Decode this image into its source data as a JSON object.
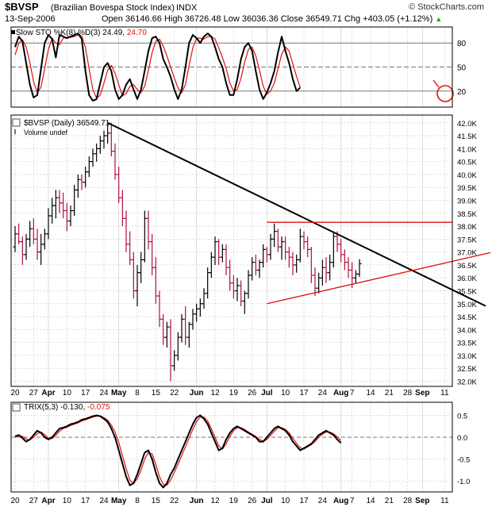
{
  "header": {
    "symbol": "$BVSP",
    "name": "(Brazilian Bovespa Stock Index)",
    "exchange": "INDX",
    "date": "13-Sep-2006",
    "open_label": "Open",
    "open": "36146.66",
    "high_label": "High",
    "high": "36726.48",
    "low_label": "Low",
    "low": "36036.36",
    "close_label": "Close",
    "close": "36549.71",
    "chg_label": "Chg",
    "chg": "+403.05 (+1.12%)",
    "brand": "© StockCharts.com"
  },
  "colors": {
    "price_up": "#000000",
    "price_down": "#b0103a",
    "signal": "#e01010",
    "trend": "#000000",
    "channel": "#e01010",
    "grid": "#c8c8c8",
    "axis": "#000000"
  },
  "chart_data": [
    {
      "type": "line",
      "panel": "stochastic",
      "legend_line": "Slow STO %K(8) %D(3)",
      "k_value": "24.49",
      "d_value": "24.70",
      "ylim": [
        0,
        100
      ],
      "yticks": [
        "80",
        "50",
        "20"
      ],
      "series": [
        {
          "name": "%K",
          "values": [
            75,
            88,
            82,
            55,
            28,
            12,
            15,
            48,
            80,
            90,
            85,
            62,
            90,
            88,
            86,
            88,
            90,
            92,
            85,
            45,
            15,
            8,
            10,
            30,
            50,
            55,
            45,
            22,
            10,
            15,
            28,
            35,
            22,
            10,
            22,
            45,
            70,
            86,
            88,
            80,
            60,
            50,
            38,
            22,
            10,
            22,
            50,
            80,
            90,
            86,
            80,
            88,
            92,
            88,
            75,
            60,
            50,
            30,
            15,
            15,
            35,
            60,
            75,
            80,
            70,
            45,
            22,
            10,
            18,
            30,
            45,
            68,
            88,
            70,
            55,
            35,
            20,
            24.49
          ]
        },
        {
          "name": "%D",
          "values": [
            65,
            80,
            84,
            75,
            55,
            32,
            18,
            25,
            48,
            72,
            86,
            80,
            78,
            86,
            87,
            87,
            88,
            90,
            89,
            74,
            48,
            22,
            11,
            15,
            30,
            46,
            52,
            42,
            28,
            14,
            17,
            26,
            28,
            22,
            18,
            26,
            46,
            68,
            82,
            85,
            76,
            64,
            50,
            36,
            24,
            18,
            28,
            52,
            74,
            86,
            86,
            85,
            88,
            88,
            85,
            74,
            62,
            48,
            30,
            20,
            22,
            36,
            56,
            72,
            75,
            64,
            46,
            26,
            16,
            20,
            30,
            48,
            66,
            75,
            70,
            54,
            38,
            24.7
          ]
        }
      ]
    },
    {
      "type": "bar",
      "subtype": "ohlc",
      "panel": "price",
      "legend_line": "$BVSP (Daily)",
      "last_value": "36549.71",
      "volume_label": "Volume undef",
      "ylim": [
        31800,
        42300
      ],
      "yticks": [
        "42.0K",
        "41.5K",
        "41.0K",
        "40.5K",
        "40.0K",
        "39.5K",
        "39.0K",
        "38.5K",
        "38.0K",
        "37.5K",
        "37.0K",
        "36.5K",
        "36.0K",
        "35.5K",
        "35.0K",
        "34.5K",
        "34.0K",
        "33.5K",
        "33.0K",
        "32.5K",
        "32.0K"
      ],
      "bars": [
        [
          37200,
          38000,
          37000,
          37700
        ],
        [
          37700,
          38100,
          37300,
          37400
        ],
        [
          37400,
          37600,
          36500,
          36900
        ],
        [
          36900,
          37700,
          36700,
          37500
        ],
        [
          37500,
          38200,
          37200,
          37900
        ],
        [
          37900,
          38300,
          37300,
          37500
        ],
        [
          37500,
          37900,
          36700,
          37000
        ],
        [
          37000,
          37700,
          36500,
          37300
        ],
        [
          37300,
          37900,
          37100,
          37700
        ],
        [
          37700,
          38700,
          37500,
          38400
        ],
        [
          38400,
          39100,
          38100,
          38800
        ],
        [
          38800,
          39400,
          38300,
          39100
        ],
        [
          39100,
          39400,
          38500,
          38900
        ],
        [
          38900,
          39300,
          38300,
          38600
        ],
        [
          38600,
          38900,
          37800,
          38200
        ],
        [
          38200,
          38800,
          38000,
          38600
        ],
        [
          38600,
          39600,
          38400,
          39400
        ],
        [
          39400,
          40000,
          39100,
          39800
        ],
        [
          39800,
          40000,
          39400,
          39700
        ],
        [
          39700,
          40300,
          39500,
          40100
        ],
        [
          40100,
          40700,
          39900,
          40500
        ],
        [
          40500,
          41000,
          40300,
          40800
        ],
        [
          40800,
          41200,
          40500,
          41000
        ],
        [
          41000,
          41500,
          40800,
          41300
        ],
        [
          41300,
          41700,
          41000,
          41500
        ],
        [
          41500,
          42000,
          41200,
          41600
        ],
        [
          41600,
          42000,
          40700,
          40900
        ],
        [
          40900,
          41200,
          39800,
          40000
        ],
        [
          40000,
          40300,
          38900,
          39100
        ],
        [
          39100,
          39400,
          38000,
          38300
        ],
        [
          38300,
          38600,
          37000,
          37300
        ],
        [
          37300,
          37800,
          36500,
          36700
        ],
        [
          36700,
          37000,
          35200,
          35500
        ],
        [
          35500,
          36500,
          34900,
          36200
        ],
        [
          36200,
          37000,
          35800,
          36700
        ],
        [
          36700,
          38600,
          36600,
          38300
        ],
        [
          38300,
          38600,
          37100,
          37400
        ],
        [
          37400,
          37700,
          36100,
          36400
        ],
        [
          36400,
          36800,
          35000,
          35300
        ],
        [
          35300,
          35500,
          34100,
          34400
        ],
        [
          34400,
          34600,
          33400,
          33700
        ],
        [
          33700,
          34300,
          33300,
          34100
        ],
        [
          34100,
          34400,
          32000,
          32600
        ],
        [
          32600,
          33200,
          32400,
          33000
        ],
        [
          33000,
          33900,
          32800,
          33700
        ],
        [
          33700,
          34600,
          33500,
          34400
        ],
        [
          34400,
          34900,
          33400,
          33700
        ],
        [
          33700,
          34300,
          33300,
          34200
        ],
        [
          34200,
          34800,
          34000,
          34600
        ],
        [
          34600,
          35000,
          34300,
          34800
        ],
        [
          34800,
          35200,
          34500,
          35000
        ],
        [
          35000,
          35600,
          34800,
          35400
        ],
        [
          35400,
          36400,
          35200,
          36200
        ],
        [
          36200,
          37000,
          36000,
          36800
        ],
        [
          36800,
          37600,
          36500,
          37400
        ],
        [
          37400,
          37500,
          36500,
          36800
        ],
        [
          36800,
          37300,
          36600,
          37100
        ],
        [
          37100,
          37300,
          36100,
          36400
        ],
        [
          36400,
          36700,
          35500,
          35800
        ],
        [
          35800,
          36100,
          35200,
          35500
        ],
        [
          35500,
          36000,
          35100,
          35700
        ],
        [
          35700,
          35900,
          34900,
          35100
        ],
        [
          35100,
          35500,
          34600,
          35400
        ],
        [
          35400,
          36300,
          35200,
          36100
        ],
        [
          36100,
          36800,
          35900,
          36600
        ],
        [
          36600,
          36900,
          36100,
          36300
        ],
        [
          36300,
          36700,
          36000,
          36600
        ],
        [
          36600,
          37300,
          36400,
          37100
        ],
        [
          37100,
          37200,
          36600,
          36900
        ],
        [
          36900,
          37700,
          36700,
          37500
        ],
        [
          37500,
          38100,
          37200,
          37800
        ],
        [
          37800,
          37900,
          37000,
          37200
        ],
        [
          37200,
          37600,
          36700,
          37400
        ],
        [
          37400,
          37600,
          36700,
          37000
        ],
        [
          37000,
          37200,
          36400,
          36800
        ],
        [
          36800,
          37000,
          36100,
          36500
        ],
        [
          36500,
          36900,
          36200,
          36700
        ],
        [
          36700,
          37900,
          36600,
          37600
        ],
        [
          37600,
          37800,
          37100,
          37400
        ],
        [
          37400,
          37600,
          36800,
          37100
        ],
        [
          37100,
          37200,
          35800,
          36100
        ],
        [
          36100,
          36400,
          35300,
          35600
        ],
        [
          35600,
          36200,
          35400,
          36000
        ],
        [
          36000,
          36700,
          35700,
          36400
        ],
        [
          36400,
          36800,
          35800,
          36200
        ],
        [
          36200,
          36900,
          35900,
          36600
        ],
        [
          36600,
          37800,
          36400,
          37600
        ],
        [
          37600,
          37800,
          37000,
          37300
        ],
        [
          37300,
          37500,
          36600,
          36900
        ],
        [
          36900,
          37100,
          36300,
          36600
        ],
        [
          36600,
          36800,
          36000,
          36300
        ],
        [
          36300,
          36600,
          35600,
          36000
        ],
        [
          36000,
          36300,
          35800,
          36146
        ],
        [
          36146.66,
          36726.48,
          36036.36,
          36549.71
        ]
      ],
      "trendline": [
        {
          "bar": 25,
          "value": 42000
        },
        {
          "bar": 97,
          "value": 37000
        }
      ],
      "channel_top": [
        {
          "bar": 68,
          "value": 38150
        },
        {
          "bar": 97,
          "value": 38150
        }
      ],
      "channel_bottom": [
        {
          "bar": 68,
          "value": 35000
        },
        {
          "bar": 97,
          "value": 35950
        }
      ]
    },
    {
      "type": "line",
      "panel": "trix",
      "legend_line": "TRIX(5,3)",
      "trix_value": "-0.130",
      "signal_value": "-0.075",
      "ylim": [
        -1.25,
        0.8
      ],
      "yticks": [
        "0.5",
        "0.0",
        "-0.5",
        "-1.0"
      ],
      "series": [
        {
          "name": "TRIX",
          "values": [
            0.02,
            0.05,
            -0.02,
            -0.1,
            -0.05,
            0.05,
            0.15,
            0.1,
            0.0,
            -0.05,
            0.0,
            0.1,
            0.2,
            0.22,
            0.25,
            0.3,
            0.32,
            0.35,
            0.4,
            0.42,
            0.45,
            0.48,
            0.5,
            0.48,
            0.42,
            0.35,
            0.2,
            0.0,
            -0.3,
            -0.6,
            -0.9,
            -1.1,
            -1.05,
            -0.85,
            -0.6,
            -0.35,
            -0.3,
            -0.5,
            -0.8,
            -1.05,
            -1.15,
            -1.05,
            -0.85,
            -0.7,
            -0.5,
            -0.3,
            -0.1,
            0.1,
            0.3,
            0.45,
            0.5,
            0.42,
            0.3,
            0.1,
            -0.1,
            -0.3,
            -0.25,
            -0.05,
            0.1,
            0.2,
            0.25,
            0.2,
            0.15,
            0.1,
            0.05,
            0.0,
            -0.1,
            -0.1,
            0.0,
            0.1,
            0.2,
            0.25,
            0.2,
            0.15,
            0.05,
            -0.1,
            -0.2,
            -0.3,
            -0.25,
            -0.2,
            -0.15,
            -0.05,
            0.05,
            0.1,
            0.15,
            0.1,
            0.05,
            -0.05,
            -0.13
          ]
        },
        {
          "name": "Signal",
          "values": [
            0.0,
            0.03,
            0.02,
            -0.04,
            -0.06,
            0.0,
            0.08,
            0.12,
            0.06,
            -0.02,
            -0.03,
            0.04,
            0.14,
            0.2,
            0.23,
            0.27,
            0.3,
            0.33,
            0.37,
            0.4,
            0.43,
            0.46,
            0.48,
            0.49,
            0.45,
            0.39,
            0.28,
            0.12,
            -0.12,
            -0.42,
            -0.72,
            -0.98,
            -1.06,
            -0.95,
            -0.75,
            -0.5,
            -0.35,
            -0.38,
            -0.62,
            -0.9,
            -1.08,
            -1.1,
            -0.98,
            -0.8,
            -0.62,
            -0.42,
            -0.22,
            -0.02,
            0.18,
            0.36,
            0.46,
            0.46,
            0.37,
            0.2,
            0.0,
            -0.2,
            -0.27,
            -0.15,
            0.02,
            0.15,
            0.22,
            0.22,
            0.18,
            0.12,
            0.07,
            0.02,
            -0.05,
            -0.09,
            -0.05,
            0.04,
            0.14,
            0.22,
            0.22,
            0.18,
            0.1,
            -0.02,
            -0.14,
            -0.24,
            -0.27,
            -0.22,
            -0.17,
            -0.1,
            0.0,
            0.07,
            0.12,
            0.12,
            0.08,
            0.01,
            -0.075
          ]
        }
      ]
    }
  ],
  "x_axis": {
    "labels": [
      {
        "text": "20",
        "bar": 0
      },
      {
        "text": "27",
        "bar": 5
      },
      {
        "text": "Apr",
        "bar": 9,
        "major": true
      },
      {
        "text": "10",
        "bar": 14
      },
      {
        "text": "17",
        "bar": 19
      },
      {
        "text": "24",
        "bar": 24
      },
      {
        "text": "May",
        "bar": 28,
        "major": true
      },
      {
        "text": "8",
        "bar": 33
      },
      {
        "text": "15",
        "bar": 38
      },
      {
        "text": "22",
        "bar": 43
      },
      {
        "text": "Jun",
        "bar": 49,
        "major": true
      },
      {
        "text": "12",
        "bar": 54
      },
      {
        "text": "19",
        "bar": 59
      },
      {
        "text": "26",
        "bar": 64
      },
      {
        "text": "Jul",
        "bar": 68,
        "major": true
      },
      {
        "text": "10",
        "bar": 73
      },
      {
        "text": "17",
        "bar": 78
      },
      {
        "text": "24",
        "bar": 83
      },
      {
        "text": "Aug",
        "bar": 88,
        "major": true
      },
      {
        "text": "7",
        "bar": 91
      },
      {
        "text": "14",
        "bar": 96
      },
      {
        "text": "21",
        "bar": 101
      },
      {
        "text": "28",
        "bar": 106
      },
      {
        "text": "Sep",
        "bar": 110,
        "major": true
      },
      {
        "text": "11",
        "bar": 116
      }
    ]
  }
}
